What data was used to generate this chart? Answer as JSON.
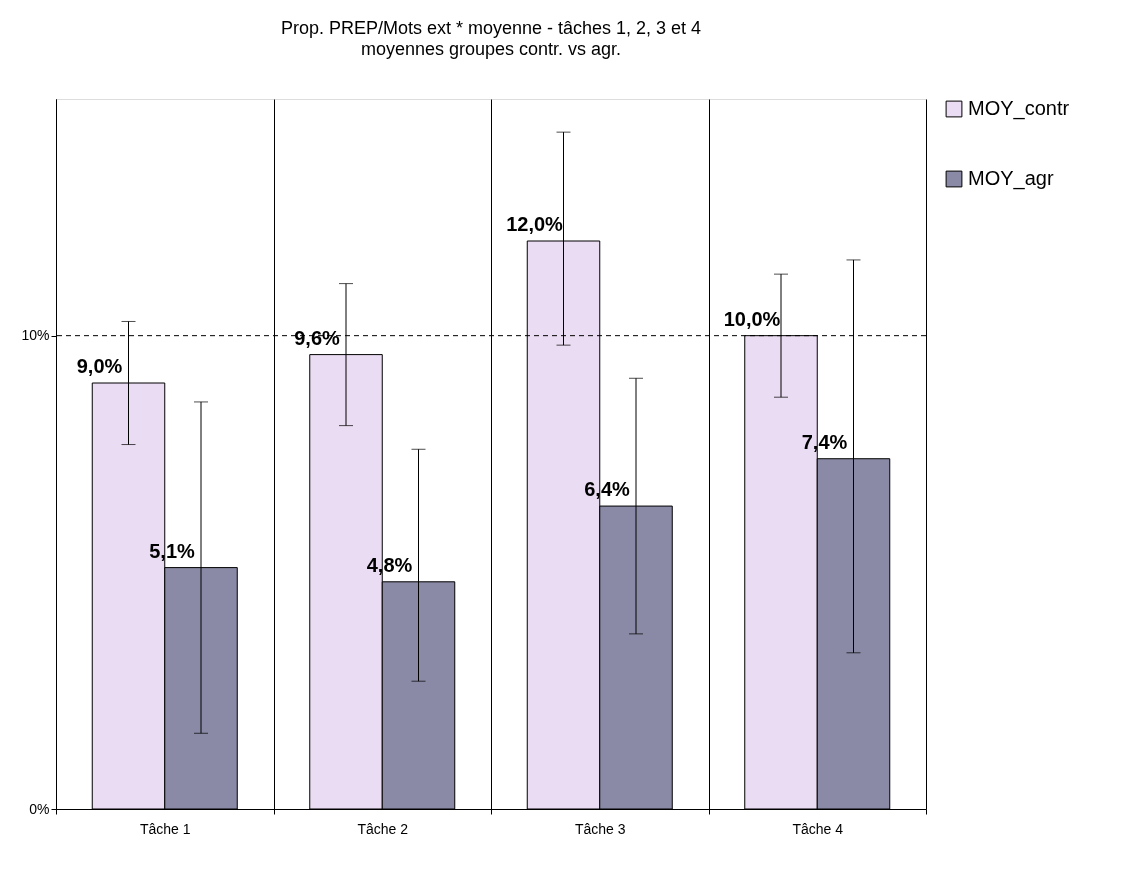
{
  "chart_data": {
    "type": "bar",
    "title": "Prop. PREP/Mots ext * moyenne - tâches 1, 2, 3 et 4",
    "subtitle": "moyennes groupes contr. vs agr.",
    "categories": [
      "Tâche 1",
      "Tâche 2",
      "Tâche 3",
      "Tâche 4"
    ],
    "series": [
      {
        "name": "MOY_contr",
        "color": "#eadcf2",
        "values": [
          9.0,
          9.6,
          12.0,
          10.0
        ],
        "errors": [
          [
            7.7,
            10.3
          ],
          [
            8.1,
            11.1
          ],
          [
            9.8,
            14.3
          ],
          [
            8.7,
            11.3
          ]
        ],
        "value_labels": [
          "9,0%",
          "9,6%",
          "12,0%",
          "10,0%"
        ]
      },
      {
        "name": "MOY_agr",
        "color": "#8a8aa6",
        "values": [
          5.1,
          4.8,
          6.4,
          7.4
        ],
        "errors": [
          [
            1.6,
            8.6
          ],
          [
            2.7,
            7.6
          ],
          [
            3.7,
            9.1
          ],
          [
            3.3,
            11.6
          ]
        ],
        "value_labels": [
          "5,1%",
          "4,8%",
          "6,4%",
          "7,4%"
        ]
      }
    ],
    "ylim": [
      0,
      15
    ],
    "yticks": [
      {
        "value": 0,
        "label": "0%"
      },
      {
        "value": 10,
        "label": "10%"
      }
    ],
    "ref_lines": [
      {
        "axis": "y",
        "value": 10,
        "line_style": "dashed",
        "color": "#000000"
      }
    ],
    "grid": "x",
    "legend": "top right"
  }
}
